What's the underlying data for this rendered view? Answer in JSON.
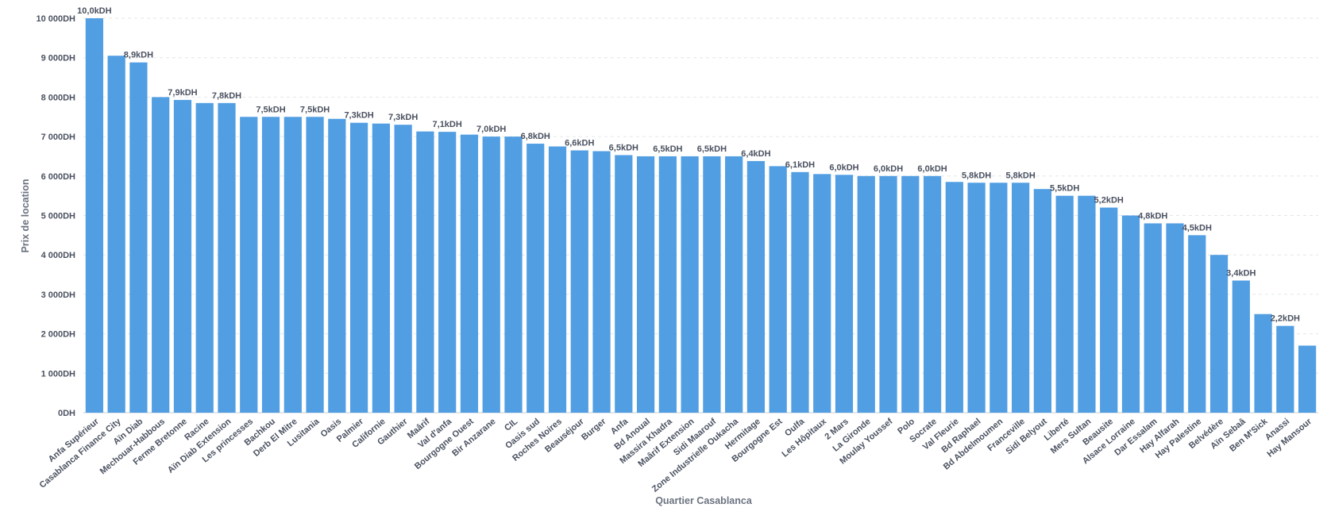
{
  "chart_data": {
    "type": "bar",
    "xlabel": "Quartier Casablanca",
    "ylabel": "Prix de location",
    "ylim": [
      0,
      10000
    ],
    "yticks": [
      0,
      1000,
      2000,
      3000,
      4000,
      5000,
      6000,
      7000,
      8000,
      9000,
      10000
    ],
    "ytick_labels": [
      "0DH",
      "1 000DH",
      "2 000DH",
      "3 000DH",
      "4 000DH",
      "5 000DH",
      "6 000DH",
      "7 000DH",
      "8 000DH",
      "9 000DH",
      "10 000DH"
    ],
    "grid": true,
    "bar_color": "#519ee3",
    "categories": [
      "Anfa Supérieur",
      "Casablanca Finance City",
      "Aïn Diab",
      "Mechouar-Habbous",
      "Ferme Bretonne",
      "Racine",
      "Aïn Diab Extension",
      "Les princesses",
      "Bachkou",
      "Derb El Mitre",
      "Lusitania",
      "Oasis",
      "Palmier",
      "Californie",
      "Gauthier",
      "Maârif",
      "Val d'anfa",
      "Bourgogne Ouest",
      "Bir Anzarane",
      "CIL",
      "Oasis sud",
      "Roches Noires",
      "Beauséjour",
      "Burger",
      "Anfa",
      "Bd Anoual",
      "Massira Khadra",
      "Maârif Extension",
      "Sidi Maarouf",
      "Zone Industrielle Oukacha",
      "Hermitage",
      "Bourgogne Est",
      "Oulfa",
      "Les Hôpitaux",
      "2 Mars",
      "La Gironde",
      "Moulay Youssef",
      "Polo",
      "Socrate",
      "Val Fleurie",
      "Bd Raphael",
      "Bd Abdelmoumen",
      "Franceville",
      "Sidi Belyout",
      "Liberté",
      "Mers Sultan",
      "Beausite",
      "Alsace Lorraine",
      "Dar Essalam",
      "Hay Alfarah",
      "Hay Palestine",
      "Belvédère",
      "Aïn Sebaâ",
      "Ben M'Sick",
      "Anassi",
      "Hay Mansour"
    ],
    "values": [
      10000,
      9050,
      8880,
      8000,
      7930,
      7850,
      7850,
      7500,
      7500,
      7500,
      7500,
      7450,
      7350,
      7330,
      7300,
      7130,
      7120,
      7050,
      7000,
      7000,
      6820,
      6750,
      6650,
      6630,
      6530,
      6500,
      6500,
      6500,
      6500,
      6500,
      6380,
      6250,
      6100,
      6050,
      6030,
      6000,
      6000,
      6000,
      6000,
      5850,
      5830,
      5830,
      5830,
      5670,
      5500,
      5500,
      5200,
      5000,
      4800,
      4800,
      4500,
      4000,
      3350,
      2500,
      2200,
      1700
    ],
    "data_labels": [
      "10,0kDH",
      "",
      "8,9kDH",
      "",
      "7,9kDH",
      "",
      "7,8kDH",
      "",
      "7,5kDH",
      "",
      "7,5kDH",
      "",
      "7,3kDH",
      "",
      "7,3kDH",
      "",
      "7,1kDH",
      "",
      "7,0kDH",
      "",
      "6,8kDH",
      "",
      "6,6kDH",
      "",
      "6,5kDH",
      "",
      "6,5kDH",
      "",
      "6,5kDH",
      "",
      "6,4kDH",
      "",
      "6,1kDH",
      "",
      "6,0kDH",
      "",
      "6,0kDH",
      "",
      "6,0kDH",
      "",
      "5,8kDH",
      "",
      "5,8kDH",
      "",
      "5,5kDH",
      "",
      "5,2kDH",
      "",
      "4,8kDH",
      "",
      "4,5kDH",
      "",
      "3,4kDH",
      "",
      "2,2kDH",
      ""
    ]
  }
}
